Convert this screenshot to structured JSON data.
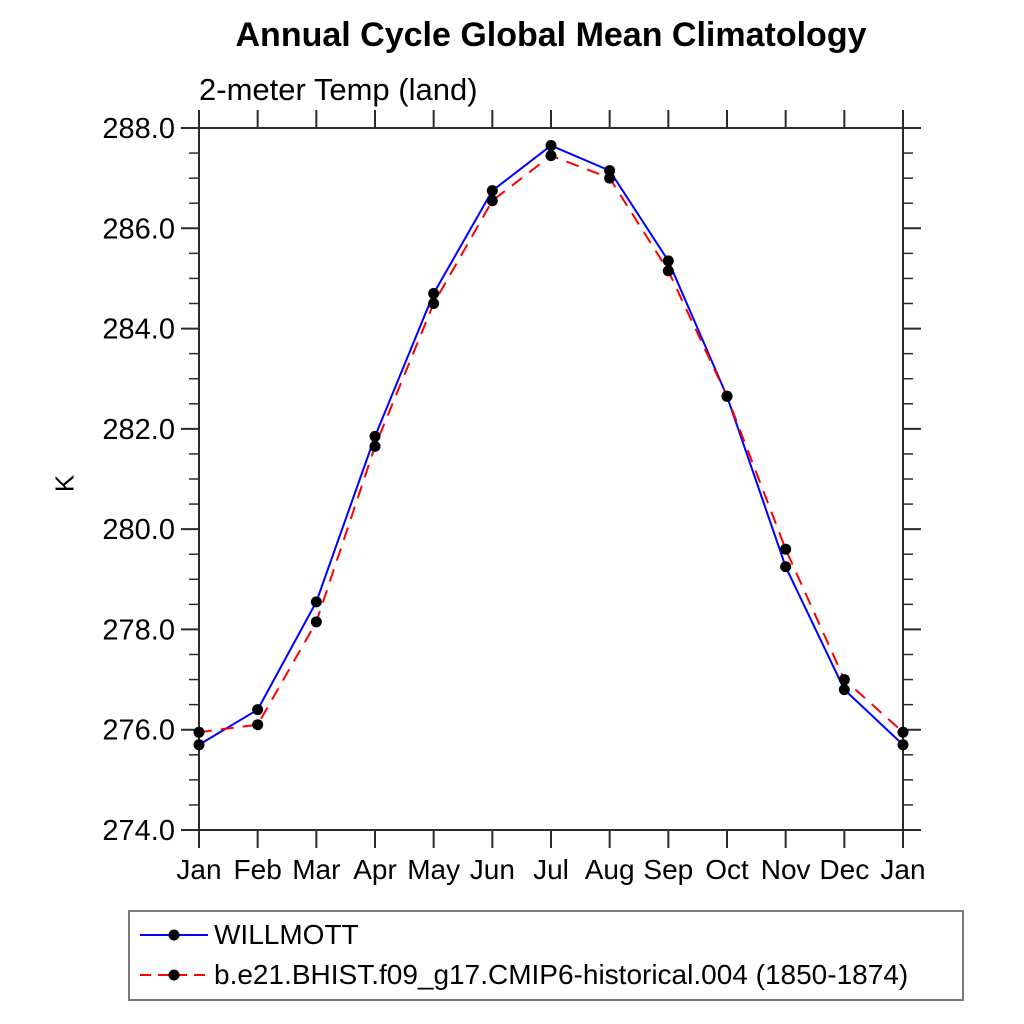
{
  "page": {
    "background": "#ffffff"
  },
  "chart_data": {
    "type": "line",
    "title": "Annual Cycle Global Mean Climatology",
    "subtitle": "2-meter Temp (land)",
    "ylabel": "K",
    "xlabel": "",
    "x_categories": [
      "Jan",
      "Feb",
      "Mar",
      "Apr",
      "May",
      "Jun",
      "Jul",
      "Aug",
      "Sep",
      "Oct",
      "Nov",
      "Dec",
      "Jan"
    ],
    "ylim": [
      274.0,
      288.0
    ],
    "ytick_labels": [
      "274.0",
      "276.0",
      "278.0",
      "280.0",
      "282.0",
      "284.0",
      "286.0",
      "288.0"
    ],
    "ytick_major_interval": 2.0,
    "ytick_minor_interval": 0.5,
    "grid": false,
    "legend_position": "bottom-left-box",
    "axis_color": "#2b2b2b",
    "marker": "filled-circle",
    "marker_color": "#000000",
    "series": [
      {
        "name": "WILLMOTT",
        "color": "#0000ff",
        "line_style": "solid",
        "values": [
          275.7,
          276.4,
          278.55,
          281.85,
          284.7,
          286.75,
          287.65,
          287.15,
          285.35,
          282.65,
          279.25,
          276.8,
          275.7
        ]
      },
      {
        "name": "b.e21.BHIST.f09_g17.CMIP6-historical.004 (1850-1874)",
        "color": "#ff0000",
        "line_style": "dashed",
        "values": [
          275.95,
          276.1,
          278.15,
          281.65,
          284.5,
          286.55,
          287.45,
          287.0,
          285.15,
          282.65,
          279.6,
          277.0,
          275.95
        ]
      }
    ]
  }
}
